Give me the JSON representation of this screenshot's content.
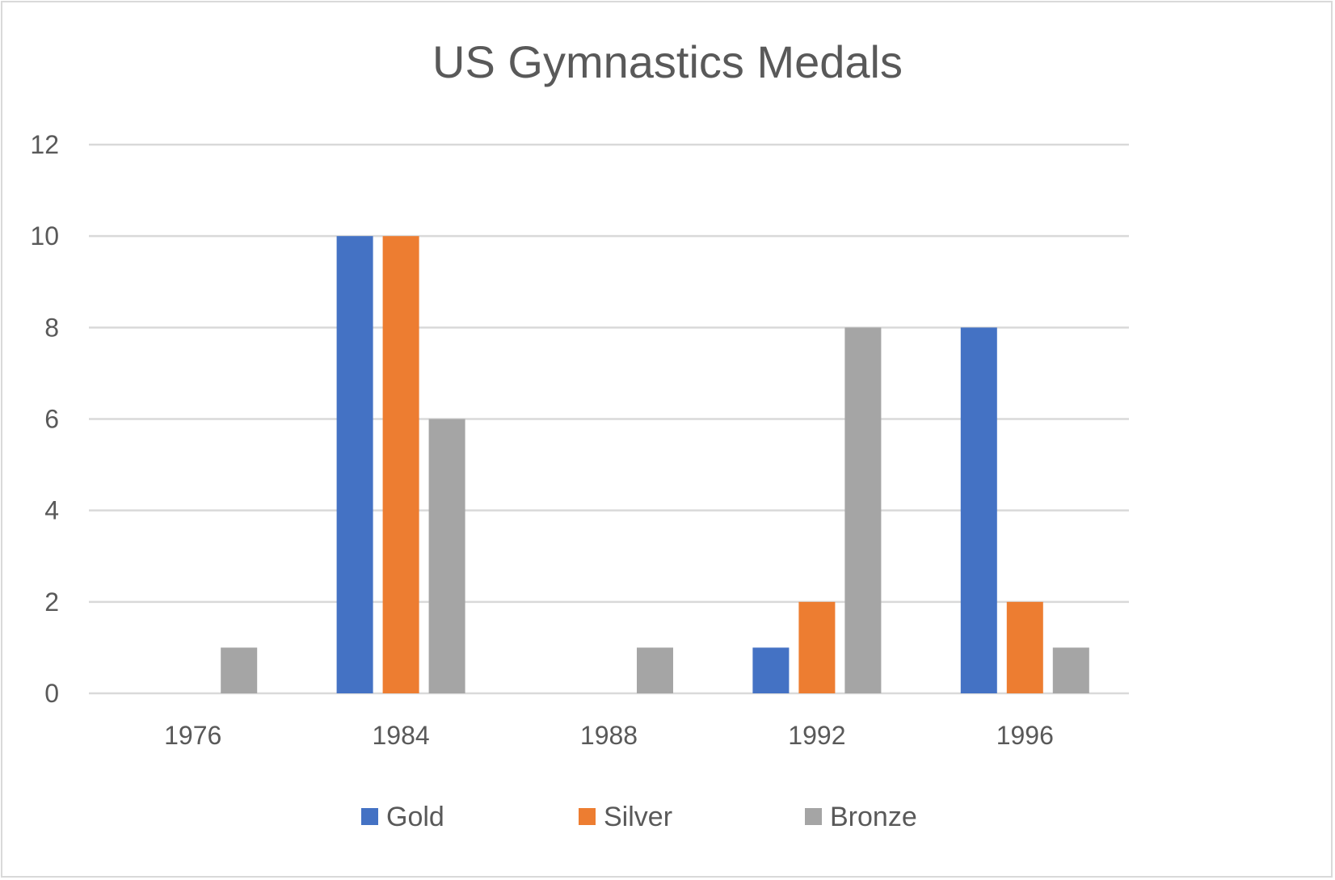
{
  "chart_data": {
    "type": "bar",
    "title": "US Gymnastics Medals",
    "xlabel": "",
    "ylabel": "",
    "categories": [
      "1976",
      "1984",
      "1988",
      "1992",
      "1996"
    ],
    "series": [
      {
        "name": "Gold",
        "color": "#4472c4",
        "values": [
          0,
          10,
          0,
          1,
          8
        ]
      },
      {
        "name": "Silver",
        "color": "#ed7d31",
        "values": [
          0,
          10,
          0,
          2,
          2
        ]
      },
      {
        "name": "Bronze",
        "color": "#a5a5a5",
        "values": [
          1,
          6,
          1,
          8,
          1
        ]
      }
    ],
    "ylim": [
      0,
      12
    ],
    "yticks": [
      0,
      2,
      4,
      6,
      8,
      10,
      12
    ],
    "grid": true,
    "legend_position": "bottom"
  }
}
